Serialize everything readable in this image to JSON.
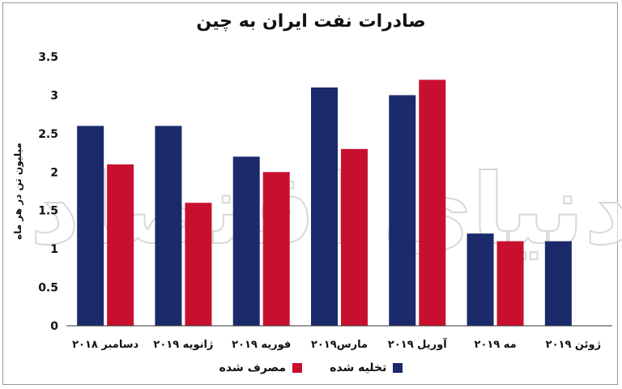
{
  "chart_data": {
    "type": "bar",
    "title": "صادرات نفت ایران به چین",
    "ylabel": "میلیون تن در هر ماه",
    "xlabel": "",
    "ylim": [
      0,
      3.5
    ],
    "yticks": [
      "0",
      "0.5",
      "1",
      "1.5",
      "2",
      "2.5",
      "3",
      "3.5"
    ],
    "categories": [
      "دسامبر ۲۰۱۸",
      "ژانویه ۲۰۱۹",
      "فوریه ۲۰۱۹",
      "مارس۲۰۱۹",
      "آوریل ۲۰۱۹",
      "مه ۲۰۱۹",
      "ژوئن ۲۰۱۹"
    ],
    "series": [
      {
        "name": "تخلیه شده",
        "color": "#1b2a6b",
        "values": [
          2.6,
          2.6,
          2.2,
          3.1,
          3.0,
          1.2,
          1.1
        ]
      },
      {
        "name": "مصرف شده",
        "color": "#c8102e",
        "values": [
          2.1,
          1.6,
          2.0,
          2.3,
          3.2,
          1.1,
          null
        ]
      }
    ],
    "grid": false,
    "legend": "bottom",
    "watermark": "دنیای اقتصاد"
  }
}
